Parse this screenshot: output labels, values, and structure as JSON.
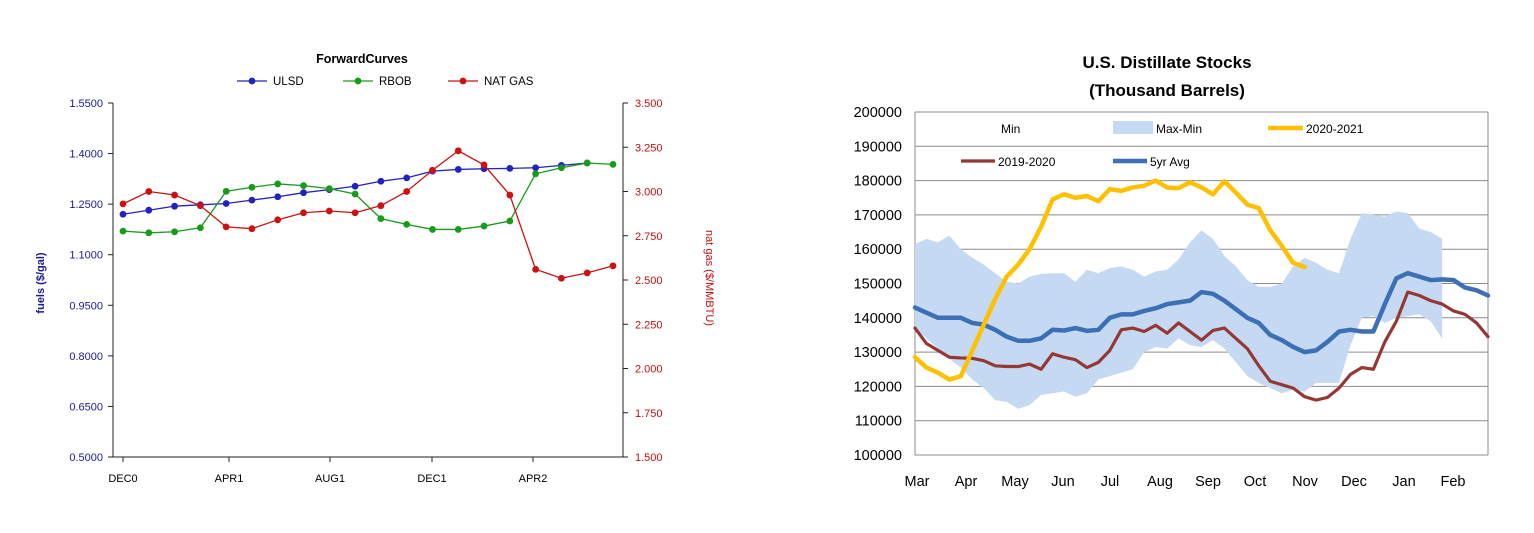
{
  "chart_data": [
    {
      "type": "line",
      "title": "ForwardCurves",
      "ylabel": "fuels ($/gal)",
      "y2label": "nat gas ($/MMBTU)",
      "x_tick_labels": [
        "DEC0",
        "APR1",
        "AUG1",
        "DEC1",
        "APR2"
      ],
      "ylim": [
        0.5,
        1.55
      ],
      "yticks": [
        "1.5500",
        "1.4000",
        "1.2500",
        "1.1000",
        "0.9500",
        "0.8000",
        "0.6500",
        "0.5000"
      ],
      "y2lim": [
        1.5,
        3.5
      ],
      "y2ticks": [
        "3.500",
        "3.250",
        "3.000",
        "2.750",
        "2.500",
        "2.250",
        "2.000",
        "1.750",
        "1.500"
      ],
      "legend_position": "top",
      "grid": false,
      "series": [
        {
          "name": "ULSD",
          "axis": "left",
          "color": "#2222c0",
          "values": [
            1.22,
            1.232,
            1.244,
            1.248,
            1.252,
            1.262,
            1.272,
            1.284,
            1.293,
            1.303,
            1.318,
            1.328,
            1.348,
            1.353,
            1.355,
            1.356,
            1.358,
            1.365,
            1.372
          ]
        },
        {
          "name": "RBOB",
          "axis": "left",
          "color": "#1a9a1a",
          "values": [
            1.17,
            1.165,
            1.168,
            1.18,
            1.288,
            1.3,
            1.31,
            1.305,
            1.296,
            1.28,
            1.207,
            1.19,
            1.175,
            1.175,
            1.185,
            1.2,
            1.34,
            1.358,
            1.372,
            1.368
          ]
        },
        {
          "name": "NAT GAS",
          "axis": "right",
          "color": "#cc1111",
          "values": [
            2.93,
            3.0,
            2.98,
            2.92,
            2.8,
            2.79,
            2.84,
            2.88,
            2.89,
            2.88,
            2.92,
            3.0,
            3.12,
            3.23,
            3.15,
            2.98,
            2.56,
            2.51,
            2.54,
            2.58
          ]
        }
      ]
    },
    {
      "type": "area",
      "title": "U.S. Distillate Stocks",
      "subtitle": "(Thousand Barrels)",
      "x_tick_labels": [
        "Mar",
        "Apr",
        "May",
        "Jun",
        "Jul",
        "Aug",
        "Sep",
        "Oct",
        "Nov",
        "Dec",
        "Jan",
        "Feb"
      ],
      "ylim": [
        100000,
        200000
      ],
      "yticks": [
        "200000",
        "190000",
        "180000",
        "170000",
        "160000",
        "150000",
        "140000",
        "130000",
        "120000",
        "110000",
        "100000"
      ],
      "grid": true,
      "legend_position": "top",
      "legend": [
        "Min",
        "Max-Min",
        "2020-2021",
        "2019-2020",
        "5yr Avg"
      ],
      "series": [
        {
          "name": "Max",
          "color": "#c5daf2",
          "values": [
            161500,
            163000,
            162000,
            164000,
            160000,
            157500,
            155500,
            153000,
            150500,
            150000,
            152000,
            152800,
            153000,
            153000,
            150500,
            154000,
            153000,
            154500,
            155000,
            154000,
            152000,
            153500,
            154000,
            157000,
            162000,
            165500,
            163000,
            158000,
            155000,
            151000,
            149000,
            149000,
            150000,
            155000,
            157500,
            156000,
            154000,
            153000,
            163000,
            170500,
            170000,
            169500,
            171000,
            170500,
            166000,
            165000,
            163000
          ]
        },
        {
          "name": "Min",
          "color": "#c5daf2",
          "values": [
            137000,
            134000,
            131000,
            128000,
            125500,
            122000,
            119500,
            116000,
            115500,
            113500,
            114500,
            117500,
            118000,
            118500,
            117000,
            118000,
            122000,
            123000,
            124000,
            125000,
            130000,
            131500,
            131000,
            134000,
            132000,
            131500,
            133500,
            131000,
            127000,
            123000,
            121000,
            119500,
            118000,
            119000,
            118500,
            121000,
            121000,
            121000,
            132000,
            140000,
            140500,
            138500,
            140000,
            140500,
            141000,
            139000,
            134000
          ]
        },
        {
          "name": "2020-2021",
          "color": "#ffc000",
          "values": [
            128500,
            125500,
            124000,
            122000,
            123000,
            130500,
            138000,
            145500,
            152000,
            155500,
            160000,
            166500,
            174500,
            176000,
            175000,
            175500,
            174000,
            177500,
            177000,
            178000,
            178500,
            180000,
            178000,
            177800,
            179500,
            178000,
            176000,
            179800,
            176500,
            173000,
            172000,
            165500,
            161000,
            156000,
            154800
          ]
        },
        {
          "name": "2019-2020",
          "color": "#953735",
          "values": [
            137000,
            132500,
            130500,
            128500,
            128300,
            128200,
            127500,
            126000,
            125800,
            125800,
            126500,
            125000,
            129500,
            128500,
            127800,
            125500,
            127000,
            130500,
            136500,
            137000,
            136000,
            137800,
            135500,
            138500,
            136000,
            133500,
            136300,
            137000,
            134000,
            131000,
            126000,
            121500,
            120500,
            119500,
            117000,
            116000,
            116800,
            119500,
            123500,
            125500,
            125000,
            133000,
            139000,
            147500,
            146500,
            145000,
            144000,
            142000,
            141000,
            138500,
            134500
          ]
        },
        {
          "name": "5yr Avg",
          "color": "#3d6fb5",
          "values": [
            143000,
            141500,
            140000,
            140000,
            140000,
            138500,
            138000,
            136500,
            134500,
            133300,
            133300,
            134000,
            136500,
            136300,
            137000,
            136200,
            136500,
            140000,
            141000,
            141000,
            142000,
            142800,
            144000,
            144500,
            145000,
            147500,
            147000,
            145000,
            142500,
            140000,
            138500,
            135000,
            133500,
            131500,
            130000,
            130500,
            133000,
            136000,
            136500,
            136000,
            136000,
            144000,
            151500,
            153000,
            152000,
            151000,
            151200,
            151000,
            148800,
            148000,
            146500
          ]
        }
      ]
    }
  ]
}
